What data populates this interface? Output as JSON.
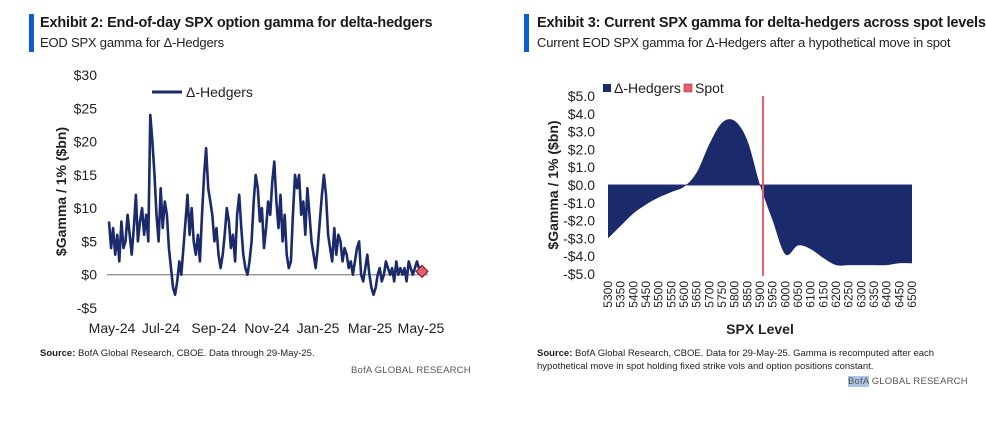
{
  "exhibit2": {
    "title": "Exhibit 2: End-of-day SPX option gamma for delta-hedgers",
    "subtitle": "EOD SPX gamma for Δ-Hedgers",
    "source_label": "Source:",
    "source_text": " BofA Global Research, CBOE. Data through 29-May-25.",
    "brand": "BofA GLOBAL RESEARCH"
  },
  "exhibit3": {
    "title": "Exhibit 3: Current SPX gamma for delta-hedgers across spot levels",
    "subtitle": "Current EOD SPX gamma for Δ-Hedgers after a hypothetical move in spot",
    "source_label": "Source:",
    "source_line1": " BofA Global Research, CBOE. Data for 29-May-25. Gamma is recomputed after each",
    "source_line2": "hypothetical move in spot holding fixed strike vols and option positions constant.",
    "brand_prefix": "BofA",
    "brand_suffix": " GLOBAL RESEARCH"
  },
  "colors": {
    "navy": "#1b2a6b",
    "spot_red": "#e0606e",
    "accent": "#0b5cd0"
  },
  "chart_data": [
    {
      "type": "line",
      "ylabel": "$Gamma / 1% ($bn)",
      "xlabel": "",
      "ylim": [
        -5,
        30
      ],
      "yticks": [
        -5,
        0,
        5,
        10,
        15,
        20,
        25,
        30
      ],
      "ytick_labels": [
        "-$5",
        "$0",
        "$5",
        "$10",
        "$15",
        "$20",
        "$25",
        "$30"
      ],
      "xtick_labels": [
        "May-24",
        "Jul-24",
        "Sep-24",
        "Nov-24",
        "Jan-25",
        "Mar-25",
        "May-25"
      ],
      "legend": "top-left",
      "grid": false,
      "series": [
        {
          "name": "Δ-Hedgers",
          "color": "#1b2a6b",
          "values": [
            8,
            4,
            7,
            3,
            6,
            2,
            8,
            4,
            5,
            9,
            6,
            3,
            7,
            12,
            5,
            8,
            10,
            6,
            9,
            5,
            24,
            20,
            15,
            9,
            5,
            13,
            7,
            11,
            9,
            4,
            1,
            -2,
            -3,
            -1,
            2,
            0,
            4,
            8,
            12,
            6,
            10,
            5,
            3,
            6,
            2,
            9,
            15,
            19,
            13,
            11,
            9,
            5,
            7,
            3,
            1,
            3,
            6,
            10,
            8,
            4,
            6,
            2,
            9,
            12,
            7,
            3,
            1,
            0,
            2,
            5,
            11,
            15,
            13,
            8,
            10,
            4,
            7,
            11,
            9,
            14,
            17,
            11,
            7,
            12,
            5,
            9,
            3,
            1,
            2,
            9,
            15,
            13,
            15,
            9,
            11,
            6,
            13,
            9,
            5,
            3,
            1,
            4,
            8,
            12,
            15,
            12,
            6,
            4,
            2,
            7,
            3,
            6,
            5,
            2,
            4,
            3,
            1,
            2,
            0,
            2,
            4,
            5,
            0,
            -1,
            1,
            3,
            0,
            -2,
            -3,
            -2,
            0,
            1,
            -1,
            0,
            2,
            1,
            0,
            1,
            -1,
            2,
            0,
            1,
            0,
            1,
            -1,
            2,
            1,
            0,
            1,
            2,
            1
          ]
        }
      ],
      "end_marker": {
        "value": 0.5,
        "color": "#e0606e"
      }
    },
    {
      "type": "area",
      "xlabel": "SPX Level",
      "ylabel": "$Gamma / 1% ($bn)",
      "ylim": [
        -5,
        5
      ],
      "yticks": [
        5,
        4,
        3,
        2,
        1,
        0,
        -1,
        -2,
        -3,
        -4,
        -5
      ],
      "ytick_labels": [
        "$5.0",
        "$4.0",
        "$3.0",
        "$2.0",
        "$1.0",
        "$0.0",
        "-$1.0",
        "-$2.0",
        "-$3.0",
        "-$4.0",
        "-$5.0"
      ],
      "x": [
        5300,
        5350,
        5400,
        5450,
        5500,
        5550,
        5600,
        5650,
        5700,
        5750,
        5800,
        5850,
        5900,
        5950,
        6000,
        6050,
        6100,
        6150,
        6200,
        6250,
        6300,
        6350,
        6400,
        6450,
        6500
      ],
      "legend": "top-left",
      "grid": false,
      "series": [
        {
          "name": "Δ-Hedgers",
          "color": "#1b2a6b",
          "values": [
            -3.0,
            -2.3,
            -1.6,
            -1.1,
            -0.7,
            -0.4,
            -0.1,
            0.7,
            2.3,
            3.5,
            3.6,
            2.5,
            0.0,
            -2.0,
            -3.9,
            -3.4,
            -3.6,
            -4.1,
            -4.5,
            -4.5,
            -4.5,
            -4.5,
            -4.5,
            -4.4,
            -4.4
          ]
        }
      ],
      "spot": {
        "name": "Spot",
        "value": 5912,
        "color": "#e0606e"
      }
    }
  ]
}
